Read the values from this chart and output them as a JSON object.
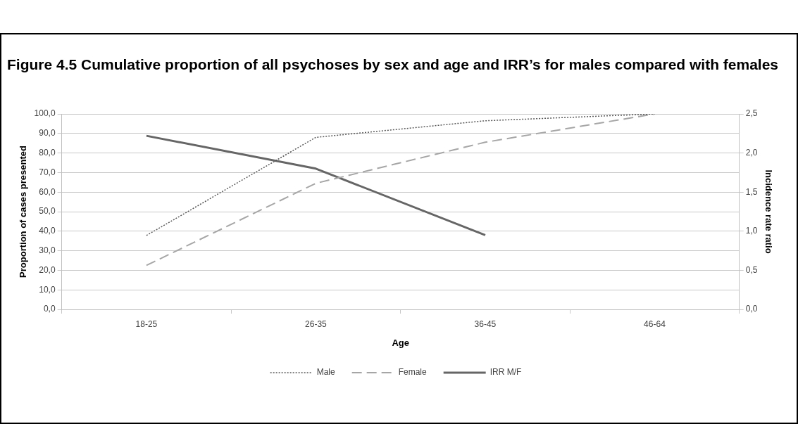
{
  "chart_data": {
    "type": "line",
    "title": "Figure 4.5 Cumulative proportion of all psychoses by sex and age and IRR’s for males compared with females",
    "xlabel": "Age",
    "ylabel": "Proportion of cases presented",
    "y2label": "Incidence rate ratio",
    "categories": [
      "18-25",
      "26-35",
      "36-45",
      "46-64"
    ],
    "series": [
      {
        "name": "Male",
        "color": "#595959",
        "line_style": "dotted",
        "values": [
          37.8,
          88.0,
          96.5,
          100.0
        ]
      },
      {
        "name": "Female",
        "color": "#a6a6a6",
        "line_style": "dashed",
        "values": [
          22.5,
          64.5,
          85.5,
          100.0
        ]
      },
      {
        "name": "IRR M/F",
        "color": "#666666",
        "line_style": "solid",
        "axis": "y2",
        "values": [
          2.22,
          1.8,
          0.95,
          null
        ]
      }
    ],
    "ylim": [
      0,
      100
    ],
    "yticks": [
      {
        "value": 0,
        "label": "0,0"
      },
      {
        "value": 10,
        "label": "10,0"
      },
      {
        "value": 20,
        "label": "20,0"
      },
      {
        "value": 30,
        "label": "30,0"
      },
      {
        "value": 40,
        "label": "40,0"
      },
      {
        "value": 50,
        "label": "50,0"
      },
      {
        "value": 60,
        "label": "60,0"
      },
      {
        "value": 70,
        "label": "70,0"
      },
      {
        "value": 80,
        "label": "80,0"
      },
      {
        "value": 90,
        "label": "90,0"
      },
      {
        "value": 100,
        "label": "100,0"
      }
    ],
    "y2lim": [
      0,
      2.5
    ],
    "y2ticks": [
      {
        "value": 0,
        "label": "0,0"
      },
      {
        "value": 0.5,
        "label": "0,5"
      },
      {
        "value": 1,
        "label": "1,0"
      },
      {
        "value": 1.5,
        "label": "1,5"
      },
      {
        "value": 2,
        "label": "2,0"
      },
      {
        "value": 2.5,
        "label": "2,5"
      }
    ],
    "grid": "y",
    "legend": "bottom",
    "marker": "none"
  }
}
